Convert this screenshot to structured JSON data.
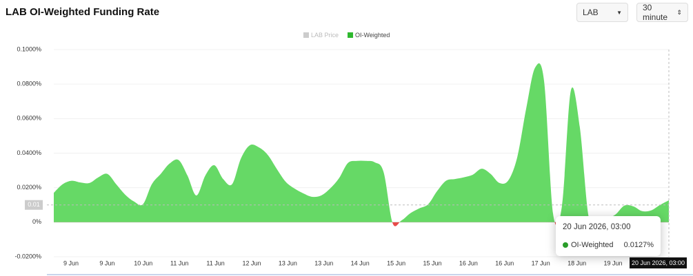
{
  "header": {
    "title": "LAB OI-Weighted Funding Rate",
    "symbol_select": "LAB",
    "interval_select": "30 minute"
  },
  "chart_data": {
    "type": "area",
    "series": [
      {
        "name": "LAB Price",
        "color": "#cccccc",
        "hidden": true,
        "values": []
      },
      {
        "name": "OI-Weighted",
        "color": "#66d966",
        "negative_color": "#e84a4a",
        "values": [
          0.017,
          0.022,
          0.024,
          0.023,
          0.0227,
          0.026,
          0.028,
          0.022,
          0.016,
          0.012,
          0.0104,
          0.022,
          0.028,
          0.034,
          0.036,
          0.027,
          0.0155,
          0.027,
          0.033,
          0.025,
          0.022,
          0.037,
          0.0446,
          0.0434,
          0.039,
          0.031,
          0.0235,
          0.0195,
          0.0167,
          0.0147,
          0.0155,
          0.0195,
          0.0255,
          0.0343,
          0.0355,
          0.0355,
          0.0347,
          0.029,
          -0.0004,
          0.001,
          0.0052,
          0.008,
          0.0104,
          0.018,
          0.024,
          0.025,
          0.026,
          0.0275,
          0.031,
          0.028,
          0.0227,
          0.0243,
          0.0378,
          0.066,
          0.0896,
          0.0817,
          0.0052,
          0.0092,
          0.0761,
          0.0554,
          0.0032,
          0.0012,
          0.002,
          0.0044,
          0.0096,
          0.0092,
          0.0064,
          0.0068,
          0.01,
          0.0127
        ]
      }
    ],
    "x_labels": [
      "9 Jun",
      "9 Jun",
      "10 Jun",
      "11 Jun",
      "11 Jun",
      "12 Jun",
      "13 Jun",
      "13 Jun",
      "14 Jun",
      "15 Jun",
      "15 Jun",
      "16 Jun",
      "16 Jun",
      "17 Jun",
      "18 Jun",
      "19 Jun"
    ],
    "ylim": [
      -0.02,
      0.1
    ],
    "yticks": [
      {
        "value": -0.02,
        "label": "-0.0200%"
      },
      {
        "value": 0,
        "label": "0%"
      },
      {
        "value": 0.02,
        "label": "0.0200%"
      },
      {
        "value": 0.04,
        "label": "0.0400%"
      },
      {
        "value": 0.06,
        "label": "0.0600%"
      },
      {
        "value": 0.08,
        "label": "0.0800%"
      },
      {
        "value": 0.1,
        "label": "0.1000%"
      }
    ],
    "grid": true,
    "crosshair": {
      "value": 0.01,
      "x_label": "20 Jun 2026, 03:00"
    },
    "tooltip": {
      "date": "20 Jun 2026, 03:00",
      "series": "OI-Weighted",
      "value": 0.0127,
      "value_label": "0.0127%"
    }
  }
}
